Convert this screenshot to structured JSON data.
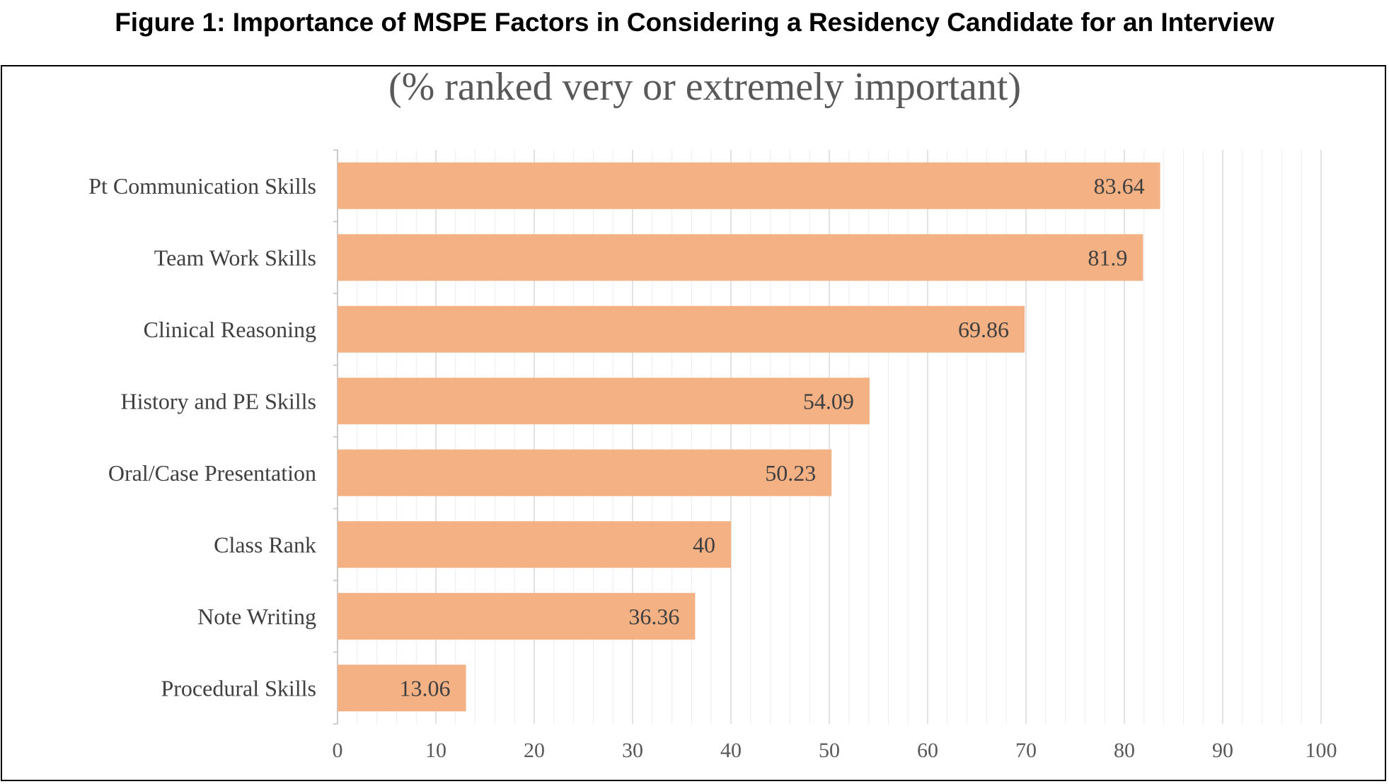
{
  "figure_title": "Figure 1: Importance of MSPE Factors in Considering a Residency Candidate for an Interview",
  "colors": {
    "bar": "#F4B183",
    "major_grid": "#D9D9D9",
    "minor_grid": "#EDEDED",
    "axis": "#BFBFBF"
  },
  "chart_data": {
    "type": "bar",
    "orientation": "horizontal",
    "title": "(% ranked very or extremely important)",
    "categories": [
      "Pt Communication Skills",
      "Team Work Skills",
      "Clinical Reasoning",
      "History and PE Skills",
      "Oral/Case Presentation",
      "Class Rank",
      "Note Writing",
      "Procedural Skills"
    ],
    "values": [
      83.64,
      81.9,
      69.86,
      54.09,
      50.23,
      40,
      36.36,
      13.06
    ],
    "data_labels": [
      "83.64",
      "81.9",
      "69.86",
      "54.09",
      "50.23",
      "40",
      "36.36",
      "13.06"
    ],
    "xlim": [
      0,
      100
    ],
    "x_ticks": [
      "0",
      "10",
      "20",
      "30",
      "40",
      "50",
      "60",
      "70",
      "80",
      "90",
      "100"
    ],
    "xlabel": "",
    "ylabel": "",
    "grid": true,
    "minor_grid": true,
    "legend": "none"
  }
}
